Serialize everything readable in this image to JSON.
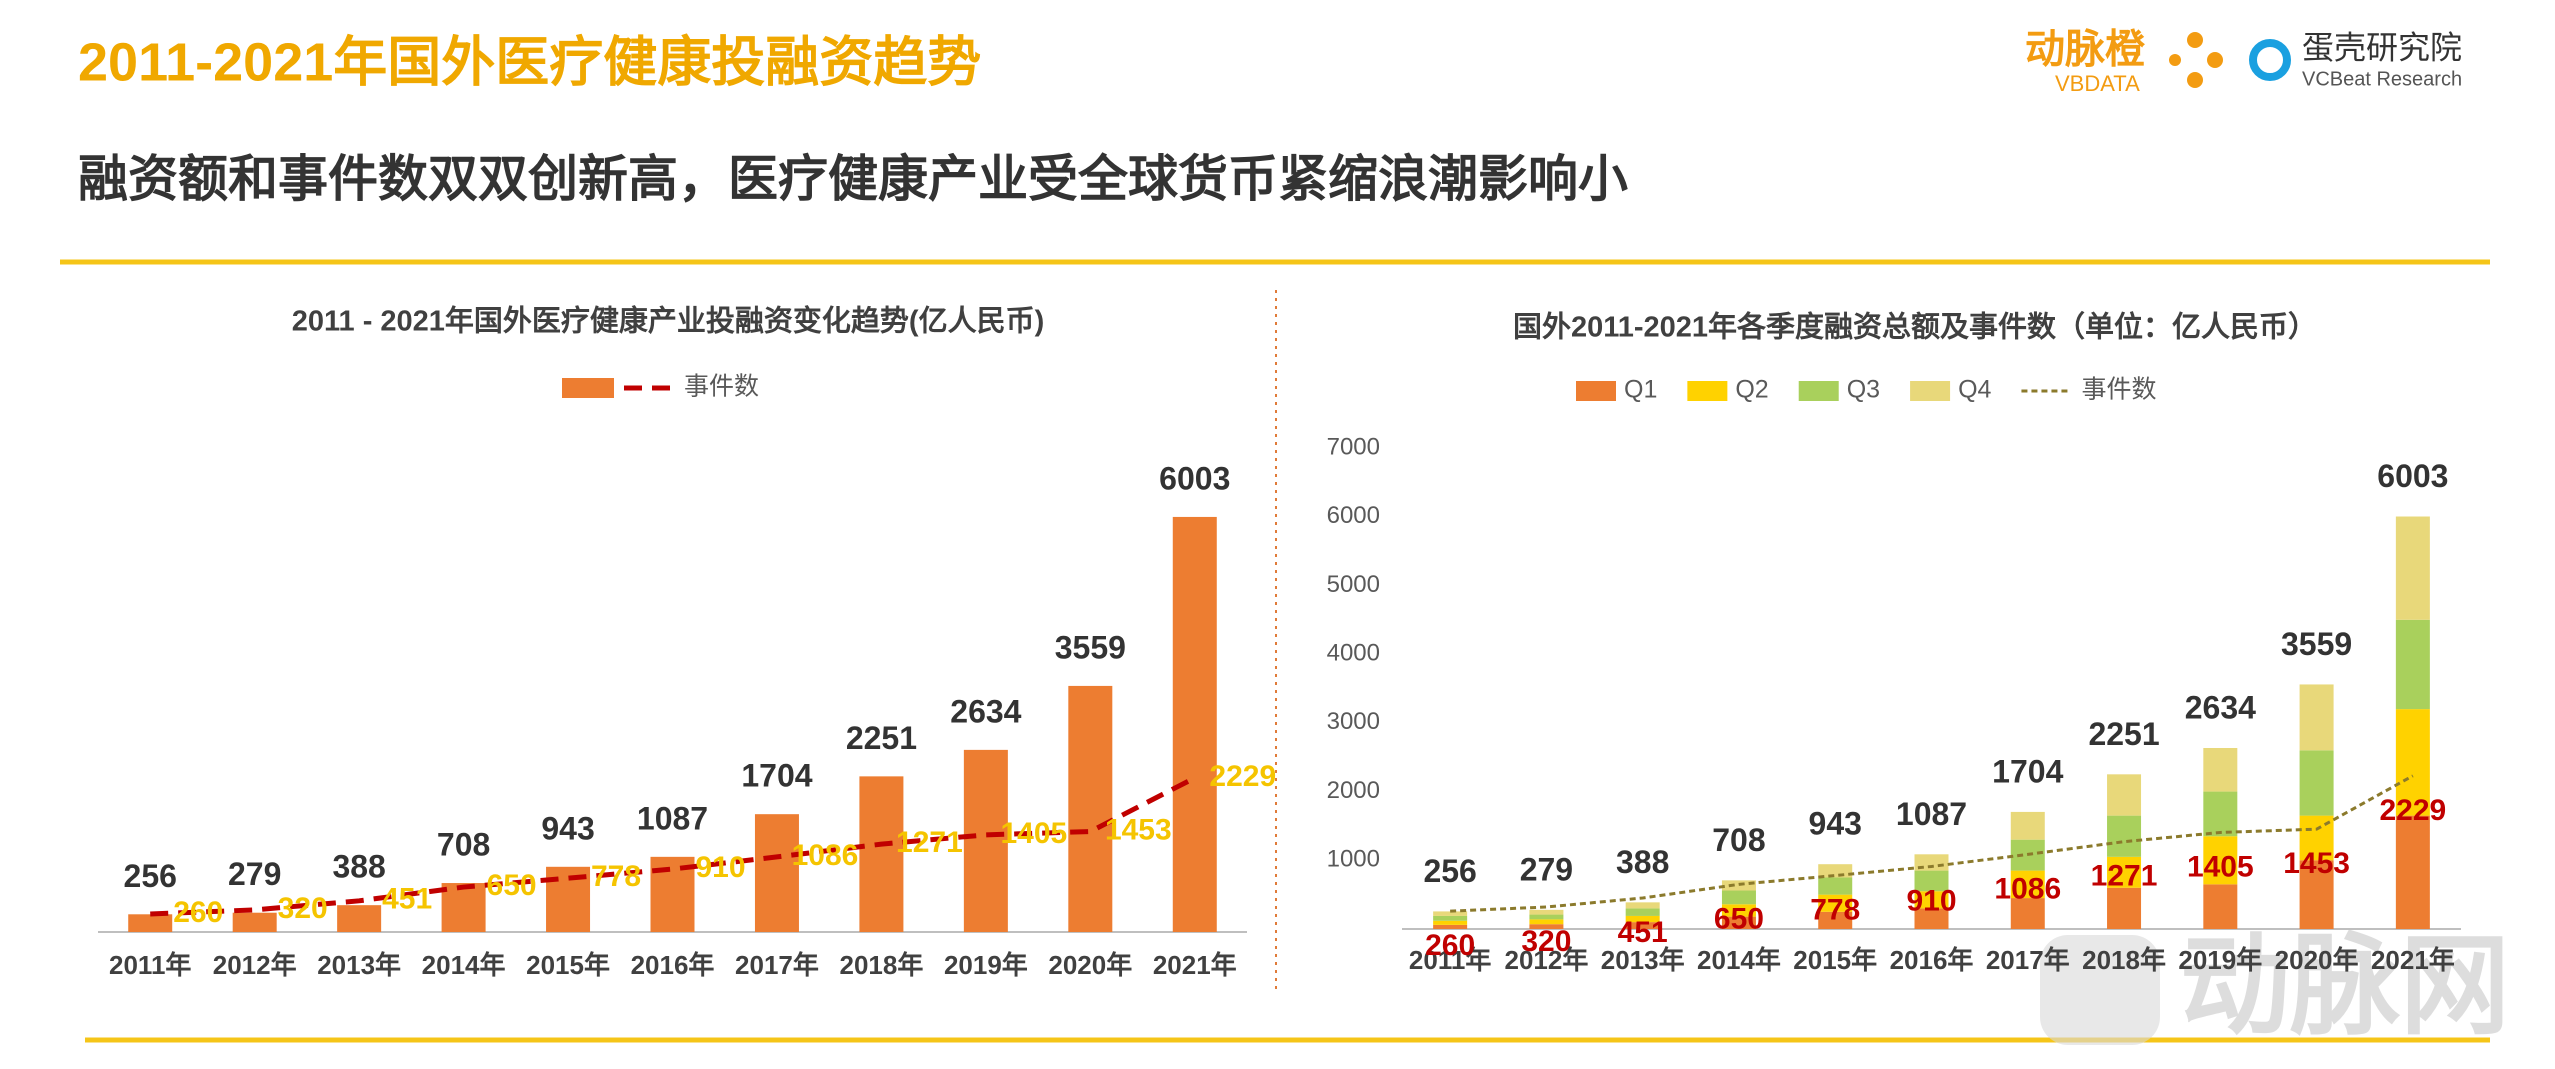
{
  "header": {
    "title": "2011-2021年国外医疗健康投融资趋势",
    "subtitle": "融资额和事件数双双创新高，医疗健康产业受全球货币紧缩浪潮影响小",
    "logo_1": "动脉橙",
    "logo_1_sub": "VBDATA",
    "logo_2": "蛋壳研究院",
    "logo_2_sub": "VCBeat Research",
    "watermark": "动脉网"
  },
  "chart_data": [
    {
      "type": "bar",
      "title": "2011 - 2021年国外医疗健康产业投融资变化趋势(亿人民币)",
      "categories": [
        "2011年",
        "2012年",
        "2013年",
        "2014年",
        "2015年",
        "2016年",
        "2017年",
        "2018年",
        "2019年",
        "2020年",
        "2021年"
      ],
      "series": [
        {
          "color": "#ed7d31",
          "values": [
            256,
            279,
            388,
            708,
            943,
            1087,
            1704,
            2251,
            2634,
            3559,
            6003
          ]
        },
        {
          "name": "事件数",
          "type": "line",
          "color": "#c00000",
          "values": [
            260,
            320,
            451,
            650,
            778,
            910,
            1086,
            1271,
            1405,
            1453,
            2229
          ]
        }
      ],
      "ylim": [
        0,
        7000
      ]
    },
    {
      "type": "stacked_bar",
      "title": "国外2011-2021年各季度融资总额及事件数（单位：亿人民币）",
      "categories": [
        "2011年",
        "2012年",
        "2013年",
        "2014年",
        "2015年",
        "2016年",
        "2017年",
        "2018年",
        "2019年",
        "2020年",
        "2021年"
      ],
      "series": [
        {
          "name": "Q1",
          "color": "#ed7d31",
          "values": [
            60,
            70,
            100,
            180,
            250,
            300,
            450,
            600,
            650,
            1000,
            1650
          ]
        },
        {
          "name": "Q2",
          "color": "#ffd200",
          "values": [
            60,
            70,
            90,
            180,
            250,
            250,
            400,
            450,
            700,
            650,
            1550
          ]
        },
        {
          "name": "Q3",
          "color": "#a9d05c",
          "values": [
            70,
            70,
            110,
            200,
            250,
            300,
            450,
            600,
            650,
            950,
            1300
          ]
        },
        {
          "name": "Q4",
          "color": "#e8d87a",
          "values": [
            66,
            69,
            88,
            148,
            193,
            237,
            404,
            601,
            634,
            959,
            1503
          ]
        },
        {
          "name": "事件数",
          "type": "line",
          "color": "#8b7a2c",
          "values": [
            260,
            320,
            451,
            650,
            778,
            910,
            1086,
            1271,
            1405,
            1453,
            2229
          ]
        }
      ],
      "total_labels": [
        256,
        279,
        388,
        708,
        943,
        1087,
        1704,
        2251,
        2634,
        3559,
        6003
      ],
      "ylim": [
        0,
        7000
      ],
      "yticks": [
        1000,
        2000,
        3000,
        4000,
        5000,
        6000,
        7000
      ]
    }
  ]
}
